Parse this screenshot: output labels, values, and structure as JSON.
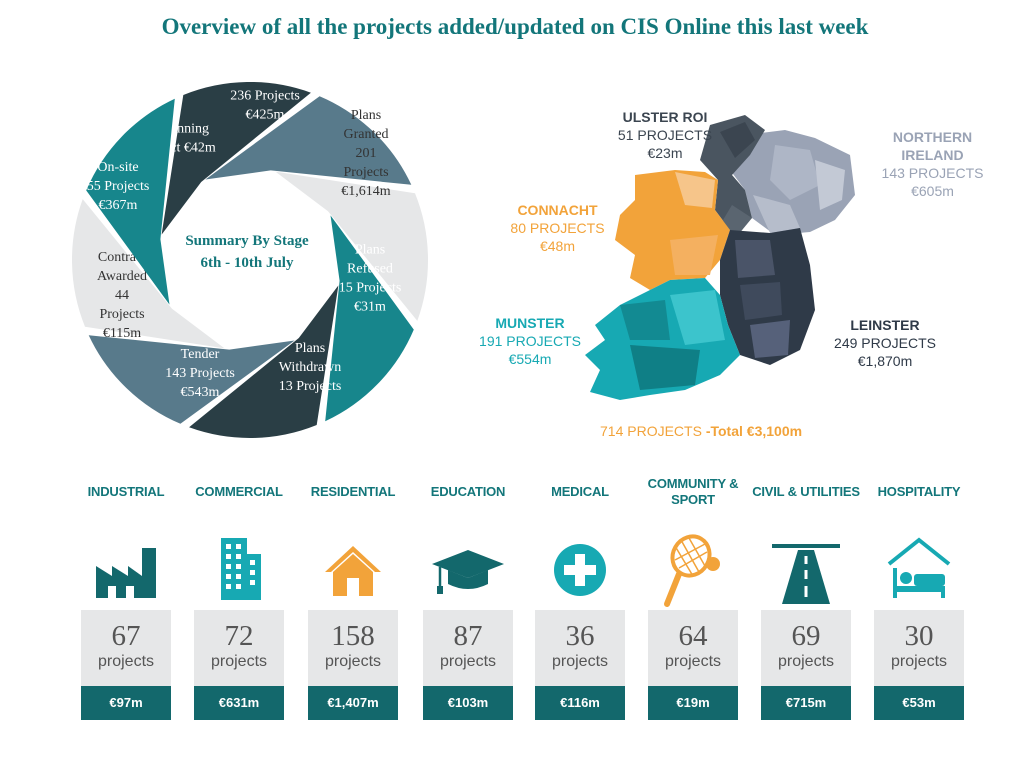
{
  "title": "Overview of all the projects added/updated on CIS Online this last week",
  "summary": {
    "heading": "Summary By Stage",
    "dates": "6th - 10th July"
  },
  "stages": [
    {
      "key": "pre-planning",
      "color": "#2a3e45",
      "lines": [
        "Pre Planning",
        "4 Project €42m"
      ]
    },
    {
      "key": "plans-submitted",
      "color": "#587a8b",
      "lines": [
        "Plans",
        "Submitted",
        "236 Projects",
        "€425m"
      ]
    },
    {
      "key": "plans-granted",
      "color": "#e6e7e8",
      "lines": [
        "Plans",
        "Granted",
        "201",
        "Projects",
        "€1,614m"
      ]
    },
    {
      "key": "plans-refused",
      "color": "#17868c",
      "lines": [
        "Plans",
        "Refused",
        "15 Projects",
        "€31m"
      ]
    },
    {
      "key": "plans-withdrawn",
      "color": "#2a3e45",
      "lines": [
        "Plans",
        "Withdrawn",
        "13 Projects"
      ]
    },
    {
      "key": "tender",
      "color": "#587a8b",
      "lines": [
        "Tender",
        "143 Projects",
        "€543m"
      ]
    },
    {
      "key": "contract-awarded",
      "color": "#e6e7e8",
      "lines": [
        "Contract",
        "Awarded",
        "44",
        "Projects",
        "€115m"
      ]
    },
    {
      "key": "on-site",
      "color": "#17868c",
      "lines": [
        "On-site",
        "55 Projects",
        "€367m"
      ]
    }
  ],
  "regions": {
    "ulster_roi": {
      "name": "ULSTER ROI",
      "projects": "51 PROJECTS",
      "value": "€23m",
      "color": "#4a5560"
    },
    "northern_ireland": {
      "name": "NORTHERN IRELAND",
      "projects": "143 PROJECTS",
      "value": "€605m",
      "color": "#9aa3b5"
    },
    "connacht": {
      "name": "CONNACHT",
      "projects": "80 PROJECTS",
      "value": "€48m",
      "color": "#f2a33a"
    },
    "munster": {
      "name": "MUNSTER",
      "projects": "191 PROJECTS",
      "value": "€554m",
      "color": "#17a9b3"
    },
    "leinster": {
      "name": "LEINSTER",
      "projects": "249 PROJECTS",
      "value": "€1,870m",
      "color": "#2f3a48"
    }
  },
  "total": {
    "projects": "714 PROJECTS",
    "value": "-Total €3,100m"
  },
  "sectors": [
    {
      "key": "industrial",
      "icon": "factory-icon",
      "name": "INDUSTRIAL",
      "count": "67",
      "unit": "projects",
      "value": "€97m"
    },
    {
      "key": "commercial",
      "icon": "office-building-icon",
      "name": "COMMERCIAL",
      "count": "72",
      "unit": "projects",
      "value": "€631m"
    },
    {
      "key": "residential",
      "icon": "house-icon",
      "name": "RESIDENTIAL",
      "count": "158",
      "unit": "projects",
      "value": "€1,407m"
    },
    {
      "key": "education",
      "icon": "graduation-cap-icon",
      "name": "EDUCATION",
      "count": "87",
      "unit": "projects",
      "value": "€103m"
    },
    {
      "key": "medical",
      "icon": "medical-cross-icon",
      "name": "MEDICAL",
      "count": "36",
      "unit": "projects",
      "value": "€116m"
    },
    {
      "key": "community-sport",
      "icon": "tennis-racket-icon",
      "name": "COMMUNITY & SPORT",
      "count": "64",
      "unit": "projects",
      "value": "€19m"
    },
    {
      "key": "civil-utilities",
      "icon": "road-icon",
      "name": "CIVIL & UTILITIES",
      "count": "69",
      "unit": "projects",
      "value": "€715m"
    },
    {
      "key": "hospitality",
      "icon": "hotel-bed-icon",
      "name": "HOSPITALITY",
      "count": "30",
      "unit": "projects",
      "value": "€53m"
    }
  ],
  "colors": {
    "teal": "#13767a",
    "teal_dark": "#13686c",
    "orange": "#f2a33a",
    "grey_box": "#e6e7e8"
  }
}
